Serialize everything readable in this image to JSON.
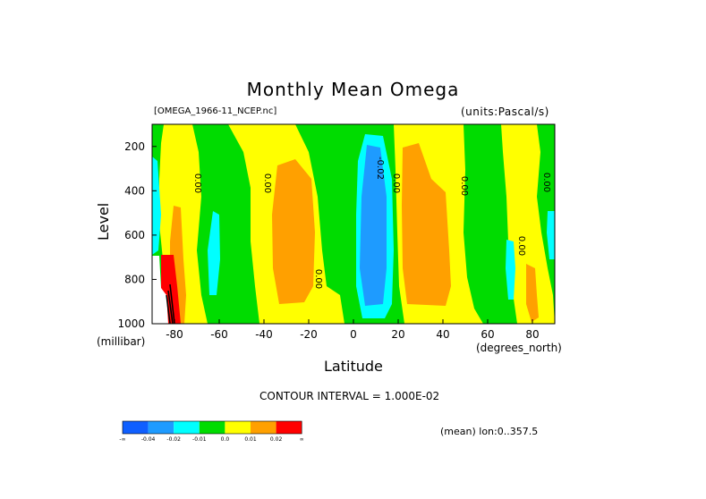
{
  "title": "Monthly Mean Omega",
  "file_label": "[OMEGA_1966-11_NCEP.nc]",
  "units_label": "(units:Pascal/s)",
  "x_unit_label": "(degrees_north)",
  "y_unit_label": "(millibar)",
  "contour_interval_text": "CONTOUR INTERVAL = 1.000E-02",
  "mean_text": "(mean) lon:0..357.5",
  "contour_labels": [
    {
      "text": "0.00"
    },
    {
      "text": "0.00"
    },
    {
      "text": "0.00"
    },
    {
      "text": "-0.02"
    },
    {
      "text": "0.00"
    },
    {
      "text": "0.00"
    },
    {
      "text": "0.00"
    },
    {
      "text": "0.00"
    }
  ],
  "colorbar": {
    "colors": [
      "#0f5fff",
      "#1e9bff",
      "#00ffff",
      "#00dc00",
      "#ffff00",
      "#ffa000",
      "#ff0000"
    ],
    "labels": [
      "-∞",
      "-0.04",
      "-0.02",
      "-0.01",
      "0.0",
      "0.01",
      "0.02",
      "∞"
    ]
  },
  "chart_data": {
    "type": "heatmap",
    "title": "Monthly Mean Omega",
    "xlabel": "Latitude",
    "ylabel": "Level",
    "xlim": [
      -90,
      90
    ],
    "ylim": [
      1000,
      100
    ],
    "x_ticks": [
      -80,
      -60,
      -40,
      -20,
      0,
      20,
      40,
      60,
      80
    ],
    "y_ticks": [
      200,
      400,
      600,
      800,
      1000
    ],
    "contour_interval": 0.01,
    "regions": [
      {
        "level": "-0.02 to -0.01",
        "lat_range": [
          2,
          18
        ],
        "pressure_range": [
          180,
          960
        ],
        "color": "#00ffff"
      },
      {
        "level": "< -0.04 to -0.02",
        "lat_range": [
          5,
          15
        ],
        "pressure_range": [
          200,
          930
        ],
        "color": "#1e9bff"
      },
      {
        "level": "0.01 to 0.02",
        "lat_range": [
          -36,
          -21
        ],
        "pressure_range": [
          320,
          900
        ],
        "color": "#ffa000"
      },
      {
        "level": "0.01 to 0.02",
        "lat_range": [
          23,
          44
        ],
        "pressure_range": [
          200,
          920
        ],
        "color": "#ffa000"
      },
      {
        "level": "> 0.02",
        "lat_range": [
          -88,
          -82
        ],
        "pressure_range": [
          700,
          1000
        ],
        "color": "#ff0000"
      }
    ]
  }
}
